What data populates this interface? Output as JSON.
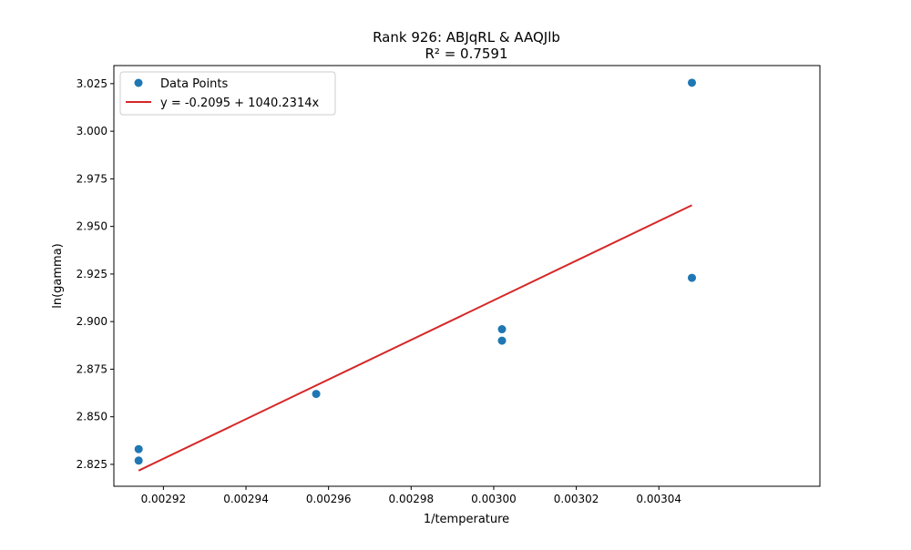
{
  "chart_data": {
    "type": "scatter",
    "title": "Rank 926: ABJqRL & AAQJlb",
    "subtitle": "R² = 0.7591",
    "xlabel": "1/temperature",
    "ylabel": "ln(gamma)",
    "xlim": [
      0.002908,
      0.003079
    ],
    "ylim": [
      2.8135,
      3.0345
    ],
    "xticks": [
      0.00292,
      0.00294,
      0.00296,
      0.00298,
      0.003,
      0.00302,
      0.00304
    ],
    "xtick_labels": [
      "0.00292",
      "0.00294",
      "0.00296",
      "0.00298",
      "0.00300",
      "0.00302",
      "0.00304"
    ],
    "yticks": [
      2.825,
      2.85,
      2.875,
      2.9,
      2.925,
      2.95,
      2.975,
      3.0,
      3.025
    ],
    "ytick_labels": [
      "2.825",
      "2.850",
      "2.875",
      "2.900",
      "2.925",
      "2.950",
      "2.975",
      "3.000",
      "3.025"
    ],
    "grid": false,
    "legend_position": "top-left",
    "series": [
      {
        "name": "Data Points",
        "kind": "scatter",
        "color": "#1f77b4",
        "points": [
          {
            "x": 0.002914,
            "y": 2.833
          },
          {
            "x": 0.002914,
            "y": 2.827
          },
          {
            "x": 0.002957,
            "y": 2.862
          },
          {
            "x": 0.003002,
            "y": 2.896
          },
          {
            "x": 0.003002,
            "y": 2.89
          },
          {
            "x": 0.003048,
            "y": 3.0255
          },
          {
            "x": 0.003048,
            "y": 2.923
          }
        ]
      },
      {
        "name": "y = -0.2095 + 1040.2314x",
        "kind": "line",
        "color": "#d62728",
        "intercept": -0.2095,
        "slope": 1040.2314,
        "x_range": [
          0.002914,
          0.003048
        ]
      }
    ]
  }
}
